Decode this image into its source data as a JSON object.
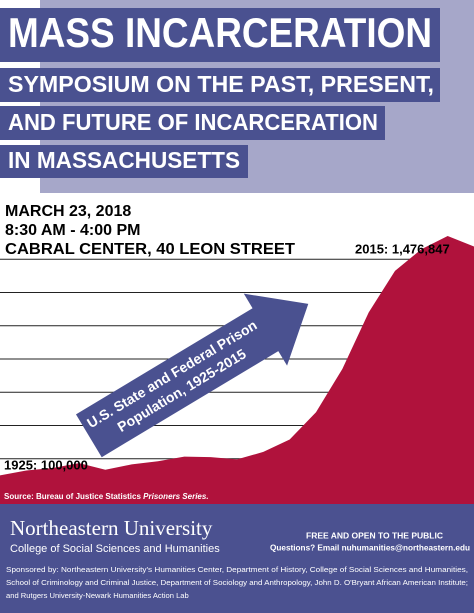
{
  "header": {
    "title": "MASS INCARCERATION",
    "subtitle_lines": [
      "SYMPOSIUM ON THE PAST, PRESENT,",
      "AND FUTURE OF INCARCERATION",
      "IN MASSACHUSETTS"
    ]
  },
  "event": {
    "date": "MARCH 23, 2018",
    "time": "8:30 AM - 4:00 PM",
    "place": "CABRAL CENTER, 40 LEON STREET"
  },
  "chart_data": {
    "type": "area",
    "x": [
      1925,
      1930,
      1935,
      1940,
      1945,
      1950,
      1955,
      1960,
      1965,
      1970,
      1975,
      1980,
      1985,
      1990,
      1995,
      2000,
      2005,
      2010,
      2015
    ],
    "values": [
      100000,
      129000,
      144000,
      174000,
      134000,
      166000,
      185000,
      213000,
      210000,
      196000,
      241000,
      316000,
      480000,
      740000,
      1080000,
      1330000,
      1460000,
      1540000,
      1476847
    ],
    "color": "#b0123c",
    "xlim": [
      1925,
      2015
    ],
    "ylim": [
      0,
      1600000
    ],
    "yticks": [
      200000,
      400000,
      600000,
      800000,
      1000000,
      1200000,
      1400000
    ],
    "grid": true,
    "annotations": [
      "2015: 1,476,847",
      "1925: 100,000"
    ],
    "arrow_lines": [
      "U.S. State and Federal Prison",
      "Population, 1925-2015"
    ],
    "source": "Source: Bureau of Justice Statistics",
    "source_italic": "Prisoners Series."
  },
  "footer": {
    "university": "Northeastern University",
    "college": "College of Social Sciences and Humanities",
    "notice": "FREE AND OPEN TO THE PUBLIC",
    "contact": "Questions? Email nuhumanities@northeastern.edu",
    "sponsors": [
      "Sponsored by: Northeastern University's Humanities Center, Department of History, College of Social Sciences and Humanities,",
      "School of Criminology and Criminal Justice, Department of Sociology and Anthropology, John D. O'Bryant African American Institute;",
      "and Rutgers University-Newark Humanities Action Lab"
    ]
  }
}
